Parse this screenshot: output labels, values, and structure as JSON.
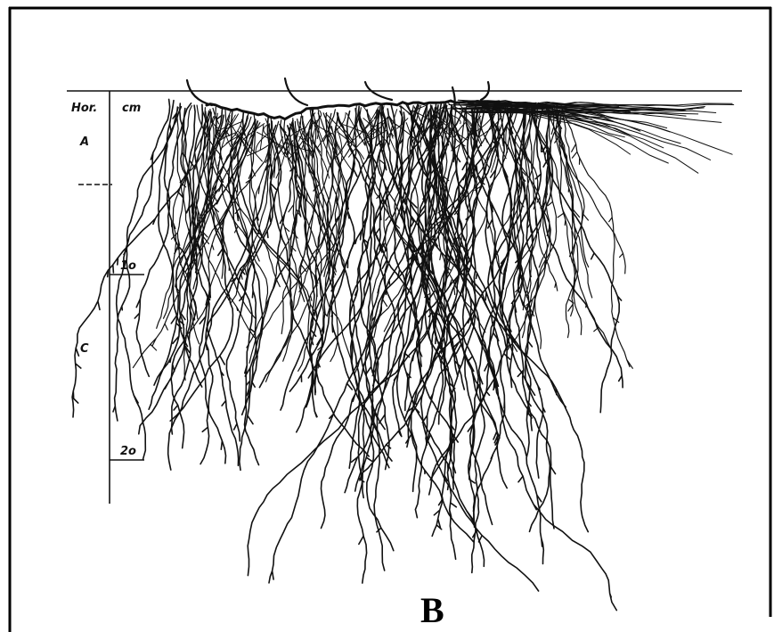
{
  "axis": {
    "header": "Hor.",
    "unit": "cm",
    "horizons": [
      "A",
      "C"
    ],
    "depths": [
      "1o",
      "2o"
    ]
  },
  "panel_label": "B"
}
